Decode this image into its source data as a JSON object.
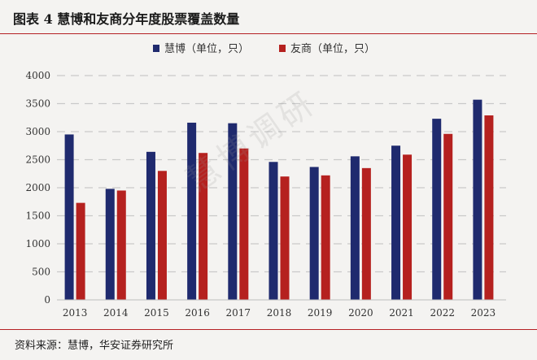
{
  "title": "图表 4  慧博和友商分年度股票覆盖数量",
  "watermark": "慧博调研",
  "source": "资料来源：慧博，华安证券研究所",
  "chart_data": {
    "type": "bar",
    "categories": [
      "2013",
      "2014",
      "2015",
      "2016",
      "2017",
      "2018",
      "2019",
      "2020",
      "2021",
      "2022",
      "2023"
    ],
    "series": [
      {
        "name": "慧博（单位，只）",
        "color": "#1f2a6e",
        "values": [
          2950,
          1980,
          2640,
          3160,
          3150,
          2460,
          2370,
          2560,
          2750,
          3230,
          3570
        ]
      },
      {
        "name": "友商（单位，只）",
        "color": "#b5211f",
        "values": [
          1730,
          1950,
          2300,
          2620,
          2700,
          2200,
          2220,
          2350,
          2590,
          2960,
          3290
        ]
      }
    ],
    "yticks": [
      0,
      500,
      1000,
      1500,
      2000,
      2500,
      3000,
      3500,
      4000
    ],
    "ylim": [
      0,
      4000
    ],
    "grid": true,
    "legend_position": "top"
  }
}
